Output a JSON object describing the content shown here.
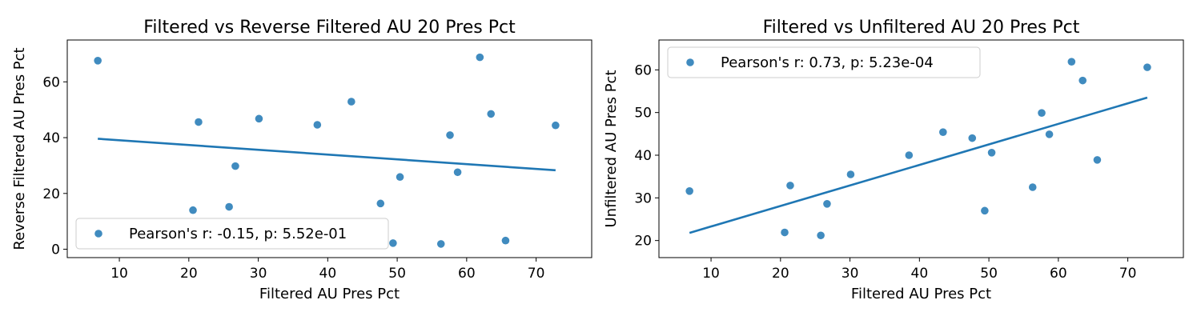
{
  "chart_data": [
    {
      "type": "scatter",
      "title": "Filtered vs Reverse Filtered AU 20 Pres Pct",
      "xlabel": "Filtered AU Pres Pct",
      "ylabel": "Reverse Filtered AU Pres Pct",
      "xlim": [
        2.5,
        78
      ],
      "ylim": [
        -3,
        75
      ],
      "xticks": [
        10,
        20,
        30,
        40,
        50,
        60,
        70
      ],
      "yticks": [
        0,
        20,
        40,
        60
      ],
      "grid": false,
      "legend_placement": "bottom-left",
      "series": [
        {
          "name": "Pearson's r: -0.15, p: 5.52e-01",
          "x": [
            6.9,
            20.6,
            21.4,
            25.8,
            26.7,
            30.1,
            38.5,
            43.4,
            47.6,
            49.4,
            50.4,
            56.3,
            57.6,
            58.7,
            61.9,
            63.5,
            65.6,
            72.8
          ],
          "y": [
            67.6,
            14.0,
            45.6,
            15.2,
            29.8,
            46.8,
            44.6,
            52.9,
            16.4,
            2.2,
            25.9,
            1.9,
            40.9,
            27.6,
            68.8,
            48.5,
            3.1,
            44.4
          ]
        }
      ],
      "fit_line": {
        "x": [
          6.9,
          72.8
        ],
        "y": [
          39.6,
          28.3
        ]
      }
    },
    {
      "type": "scatter",
      "title": "Filtered vs Unfiltered AU 20 Pres Pct",
      "xlabel": "Filtered AU Pres Pct",
      "ylabel": "Unfiltered AU Pres Pct",
      "xlim": [
        2.5,
        78
      ],
      "ylim": [
        16.0,
        67.0
      ],
      "xticks": [
        10,
        20,
        30,
        40,
        50,
        60,
        70
      ],
      "yticks": [
        20,
        30,
        40,
        50,
        60
      ],
      "grid": false,
      "legend_placement": "top-left",
      "series": [
        {
          "name": "Pearson's r: 0.73, p: 5.23e-04",
          "x": [
            6.9,
            20.6,
            21.4,
            25.8,
            26.7,
            30.1,
            38.5,
            43.4,
            47.6,
            49.4,
            50.4,
            56.3,
            57.6,
            58.7,
            61.9,
            63.5,
            65.6,
            72.8
          ],
          "y": [
            31.6,
            21.9,
            32.9,
            21.2,
            28.6,
            35.5,
            40.0,
            45.4,
            44.0,
            27.0,
            40.6,
            32.5,
            49.9,
            44.9,
            61.9,
            57.5,
            38.9,
            60.6
          ]
        }
      ],
      "fit_line": {
        "x": [
          6.9,
          72.8
        ],
        "y": [
          21.8,
          53.5
        ]
      }
    }
  ]
}
